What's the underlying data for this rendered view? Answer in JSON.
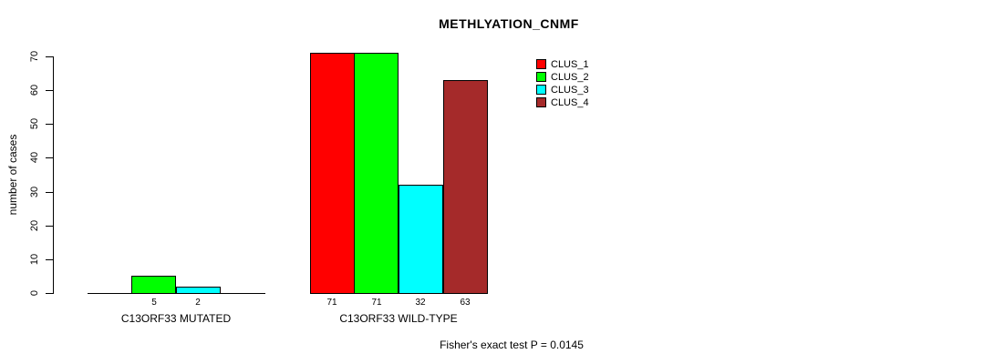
{
  "chart_data": {
    "type": "bar",
    "title": "METHLYATION_CNMF",
    "xlabel": "",
    "ylabel": "number of cases",
    "ylim": [
      0,
      70
    ],
    "yticks": [
      0,
      10,
      20,
      30,
      40,
      50,
      60,
      70
    ],
    "grid": false,
    "legend_position": "top-right",
    "series": [
      {
        "name": "CLUS_1",
        "color": "#FF0000",
        "values": [
          0,
          71
        ]
      },
      {
        "name": "CLUS_2",
        "color": "#00FF00",
        "values": [
          5,
          71
        ]
      },
      {
        "name": "CLUS_3",
        "color": "#00FFFF",
        "values": [
          2,
          32
        ]
      },
      {
        "name": "CLUS_4",
        "color": "#A52A2A",
        "values": [
          0,
          63
        ]
      }
    ],
    "categories": [
      "C13ORF33 MUTATED",
      "C13ORF33 WILD-TYPE"
    ],
    "groups": [
      {
        "label": "C13ORF33 MUTATED",
        "values": [
          0,
          5,
          2,
          0
        ],
        "bar_labels": [
          "",
          "5",
          "2",
          ""
        ]
      },
      {
        "label": "C13ORF33 WILD-TYPE",
        "values": [
          71,
          71,
          32,
          63
        ],
        "bar_labels": [
          "71",
          "71",
          "32",
          "63"
        ]
      }
    ],
    "annotation": "Fisher's exact test P = 0.0145"
  }
}
